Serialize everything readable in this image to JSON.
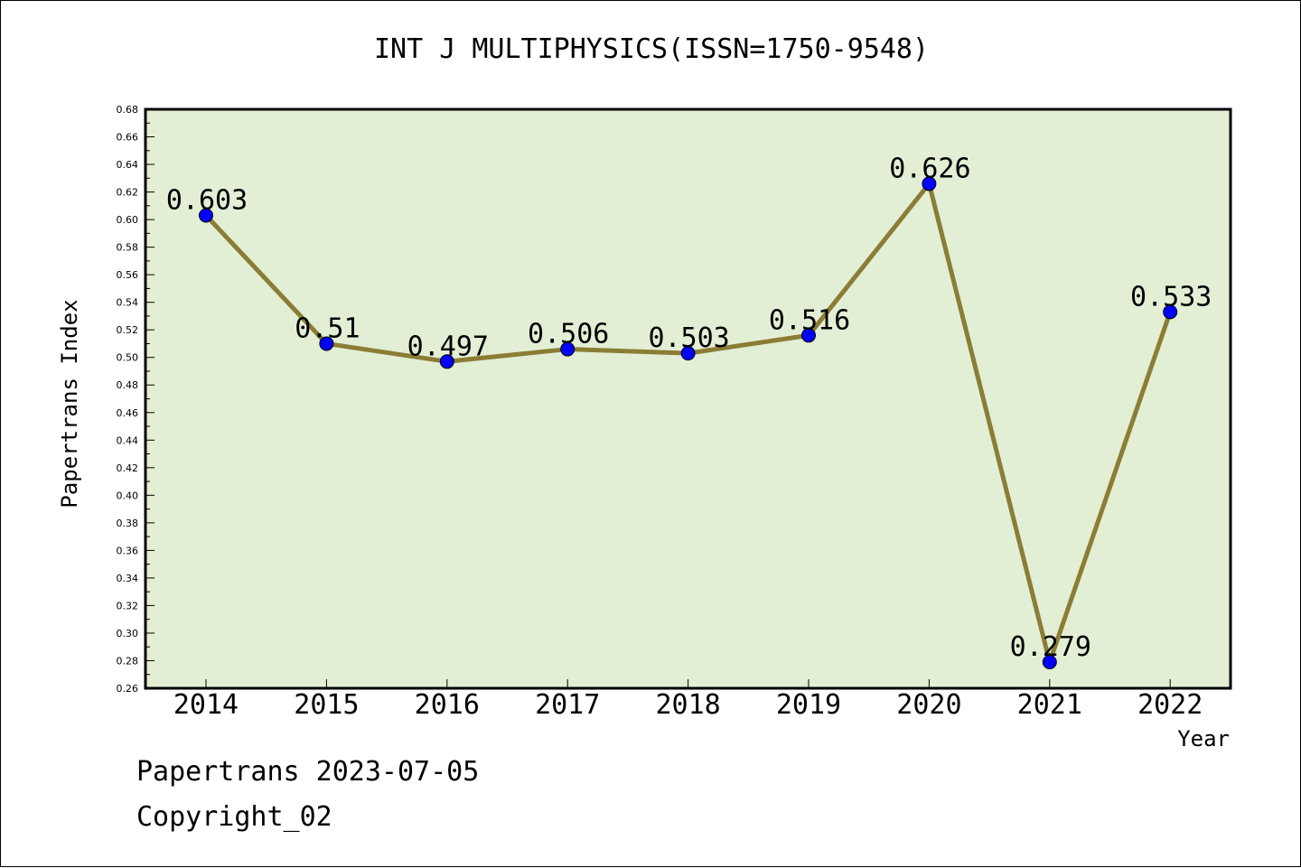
{
  "footer": {
    "line1": "Papertrans 2023-07-05",
    "line2": "Copyright_02"
  },
  "chart_data": {
    "type": "line",
    "title": "INT J MULTIPHYSICS(ISSN=1750-9548)",
    "xlabel": "Year",
    "ylabel": "Papertrans Index",
    "categories": [
      "2014",
      "2015",
      "2016",
      "2017",
      "2018",
      "2019",
      "2020",
      "2021",
      "2022"
    ],
    "values": [
      0.603,
      0.51,
      0.497,
      0.506,
      0.503,
      0.516,
      0.626,
      0.279,
      0.533
    ],
    "data_labels": [
      "0.603",
      "0.51",
      "0.497",
      "0.506",
      "0.503",
      "0.516",
      "0.626",
      "0.279",
      "0.533"
    ],
    "ylim": [
      0.26,
      0.68
    ],
    "y_ticks": [
      "0.26",
      "0.28",
      "0.30",
      "0.32",
      "0.34",
      "0.36",
      "0.38",
      "0.40",
      "0.42",
      "0.44",
      "0.46",
      "0.48",
      "0.50",
      "0.52",
      "0.54",
      "0.56",
      "0.58",
      "0.60",
      "0.62",
      "0.64",
      "0.66",
      "0.68"
    ],
    "grid": false,
    "legend": "none",
    "colors": {
      "plot_background": "#e2efd5",
      "line": "#8b7d35",
      "marker": "#0000ff",
      "axis": "#000000"
    }
  }
}
